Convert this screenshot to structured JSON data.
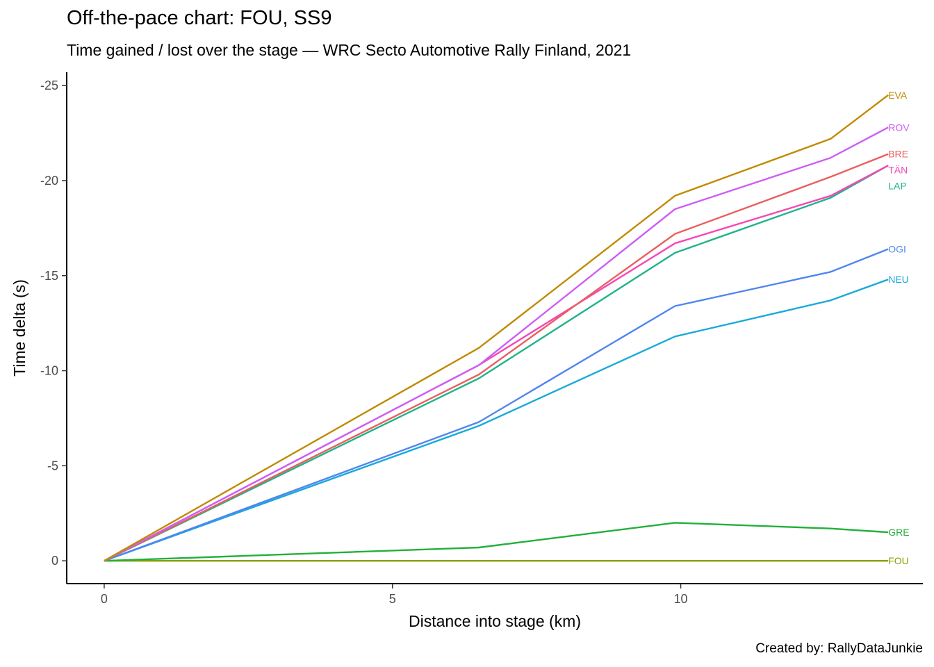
{
  "chart_data": {
    "type": "line",
    "title": "Off-the-pace chart: FOU, SS9",
    "subtitle": "Time gained / lost over the stage — WRC Secto Automotive Rally Finland, 2021",
    "caption": "Created by: RallyDataJunkie",
    "xlabel": "Distance into stage (km)",
    "ylabel": "Time delta (s)",
    "xlim": [
      -0.65,
      14.2
    ],
    "ylim": [
      1.2,
      -25.7
    ],
    "y_reversed": true,
    "grid": false,
    "legend": "none (direct end labels)",
    "x_ticks": [
      0,
      5,
      10
    ],
    "x_tick_labels": [
      "0",
      "5",
      "10"
    ],
    "y_ticks": [
      -25,
      -20,
      -15,
      -10,
      -5,
      0
    ],
    "y_tick_labels": [
      "-25",
      "-20",
      "-15",
      "-10",
      "-5",
      "0"
    ],
    "x": [
      0,
      6.5,
      9.9,
      12.6,
      13.6
    ],
    "series": [
      {
        "name": "EVA",
        "color": "#c08b00",
        "values": [
          0,
          -11.2,
          -19.2,
          -22.2,
          -24.5
        ]
      },
      {
        "name": "ROV",
        "color": "#cd5ef5",
        "values": [
          0,
          -10.3,
          -18.5,
          -21.2,
          -22.8
        ]
      },
      {
        "name": "BRE",
        "color": "#ea5f5f",
        "values": [
          0,
          -9.8,
          -17.2,
          -20.2,
          -21.4
        ]
      },
      {
        "name": "TÄN",
        "color": "#f448b8",
        "values": [
          0,
          -10.3,
          -16.7,
          -19.2,
          -20.8
        ]
      },
      {
        "name": "LAP",
        "color": "#1fb38c",
        "values": [
          0,
          -9.6,
          -16.2,
          -19.1,
          -20.8
        ]
      },
      {
        "name": "OGI",
        "color": "#4f86ef",
        "values": [
          0,
          -7.3,
          -13.4,
          -15.2,
          -16.4
        ]
      },
      {
        "name": "NEU",
        "color": "#19aad9",
        "values": [
          0,
          -7.1,
          -11.8,
          -13.7,
          -14.8
        ]
      },
      {
        "name": "GRE",
        "color": "#22b03a",
        "values": [
          0,
          -0.7,
          -2.0,
          -1.7,
          -1.5
        ]
      },
      {
        "name": "FOU",
        "color": "#8a9f00",
        "values": [
          0,
          0,
          0,
          0,
          0
        ]
      }
    ]
  }
}
